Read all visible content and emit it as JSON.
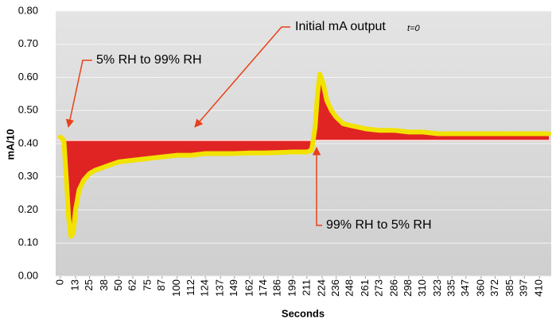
{
  "chart_data": {
    "type": "line",
    "ylabel": "mA/10",
    "xlabel": "Seconds",
    "ylim": [
      0,
      0.8
    ],
    "yticks": [
      {
        "value": 0,
        "label": "0.00"
      },
      {
        "value": 0.1,
        "label": "0.10"
      },
      {
        "value": 0.2,
        "label": "0.20"
      },
      {
        "value": 0.3,
        "label": "0.30"
      },
      {
        "value": 0.4,
        "label": "0.40"
      },
      {
        "value": 0.5,
        "label": "0.50"
      },
      {
        "value": 0.6,
        "label": "0.60"
      },
      {
        "value": 0.7,
        "label": "0.70"
      },
      {
        "value": 0.8,
        "label": "0.80"
      }
    ],
    "xlim": [
      -4,
      420
    ],
    "xticks": [
      0,
      13,
      25,
      38,
      50,
      62,
      75,
      87,
      100,
      112,
      124,
      137,
      149,
      162,
      174,
      186,
      199,
      211,
      224,
      236,
      248,
      261,
      273,
      286,
      298,
      310,
      323,
      335,
      347,
      360,
      372,
      385,
      397,
      410
    ],
    "grid": true,
    "baseline": 0.41,
    "fill_color": "#e01010",
    "series": [
      {
        "color": "#f2e200",
        "x": [
          0,
          3,
          5,
          7,
          9,
          11,
          13,
          16,
          20,
          25,
          30,
          38,
          50,
          62,
          75,
          87,
          100,
          112,
          124,
          137,
          149,
          162,
          174,
          186,
          199,
          211,
          215,
          218,
          220,
          222,
          225,
          228,
          232,
          236,
          242,
          248,
          261,
          273,
          286,
          298,
          310,
          323,
          335,
          347,
          360,
          372,
          385,
          397,
          410,
          418
        ],
        "values": [
          0.42,
          0.41,
          0.3,
          0.18,
          0.12,
          0.13,
          0.2,
          0.26,
          0.29,
          0.31,
          0.32,
          0.33,
          0.345,
          0.35,
          0.355,
          0.36,
          0.365,
          0.365,
          0.37,
          0.37,
          0.37,
          0.372,
          0.372,
          0.373,
          0.375,
          0.375,
          0.38,
          0.45,
          0.55,
          0.61,
          0.58,
          0.53,
          0.5,
          0.48,
          0.46,
          0.455,
          0.445,
          0.44,
          0.44,
          0.435,
          0.435,
          0.43,
          0.43,
          0.43,
          0.43,
          0.43,
          0.43,
          0.43,
          0.43,
          0.43
        ]
      }
    ],
    "annotations": [
      "5% RH to 99% RH",
      "Initial mA output",
      "t=0",
      "99% RH to 5% RH"
    ]
  }
}
